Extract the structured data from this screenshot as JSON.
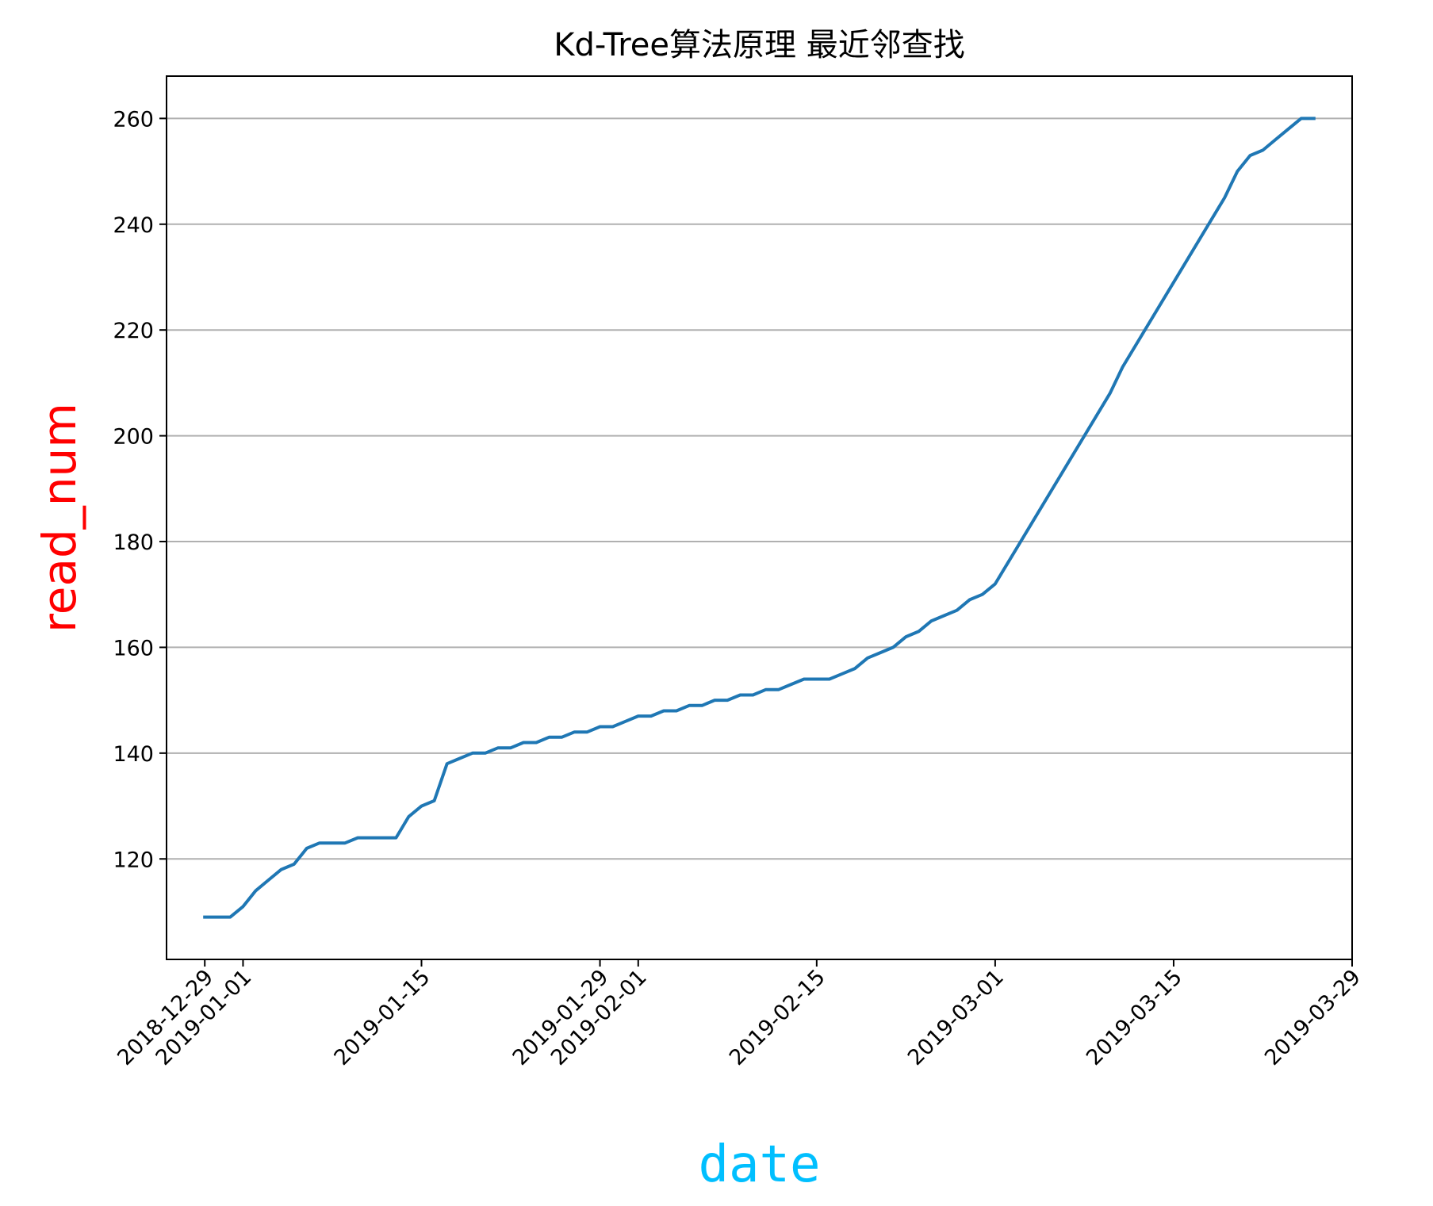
{
  "chart_data": {
    "type": "line",
    "title": "Kd-Tree算法原理 最近邻查找",
    "xlabel": "date",
    "ylabel": "read_num",
    "xlabel_color": "#00bfff",
    "ylabel_color": "#ff0000",
    "line_color": "#1f77b4",
    "grid": "horizontal",
    "xlim": [
      "2018-12-26",
      "2019-03-29"
    ],
    "ylim": [
      101,
      268
    ],
    "x_ticks": [
      "2018-12-29",
      "2019-01-01",
      "2019-01-15",
      "2019-01-29",
      "2019-02-01",
      "2019-02-15",
      "2019-03-01",
      "2019-03-15",
      "2019-03-29"
    ],
    "y_ticks": [
      120,
      140,
      160,
      180,
      200,
      220,
      240,
      260
    ],
    "series": [
      {
        "x": [
          "2018-12-29",
          "2018-12-30",
          "2018-12-31",
          "2019-01-01",
          "2019-01-02",
          "2019-01-03",
          "2019-01-04",
          "2019-01-05",
          "2019-01-06",
          "2019-01-07",
          "2019-01-08",
          "2019-01-09",
          "2019-01-10",
          "2019-01-11",
          "2019-01-12",
          "2019-01-13",
          "2019-01-14",
          "2019-01-15",
          "2019-01-16",
          "2019-01-17",
          "2019-01-18",
          "2019-01-19",
          "2019-01-20",
          "2019-01-21",
          "2019-01-22",
          "2019-01-23",
          "2019-01-24",
          "2019-01-25",
          "2019-01-26",
          "2019-01-27",
          "2019-01-28",
          "2019-01-29",
          "2019-01-30",
          "2019-01-31",
          "2019-02-01",
          "2019-02-02",
          "2019-02-03",
          "2019-02-04",
          "2019-02-05",
          "2019-02-06",
          "2019-02-07",
          "2019-02-08",
          "2019-02-09",
          "2019-02-10",
          "2019-02-11",
          "2019-02-12",
          "2019-02-13",
          "2019-02-14",
          "2019-02-15",
          "2019-02-16",
          "2019-02-17",
          "2019-02-18",
          "2019-02-19",
          "2019-02-20",
          "2019-02-21",
          "2019-02-22",
          "2019-02-23",
          "2019-02-24",
          "2019-02-25",
          "2019-02-26",
          "2019-02-27",
          "2019-02-28",
          "2019-03-01",
          "2019-03-10",
          "2019-03-11",
          "2019-03-19",
          "2019-03-20",
          "2019-03-21",
          "2019-03-22",
          "2019-03-23",
          "2019-03-24",
          "2019-03-25",
          "2019-03-26"
        ],
        "values": [
          109,
          109,
          109,
          111,
          114,
          116,
          118,
          119,
          122,
          123,
          123,
          123,
          124,
          124,
          124,
          124,
          128,
          130,
          131,
          138,
          139,
          140,
          140,
          141,
          141,
          142,
          142,
          143,
          143,
          144,
          144,
          145,
          145,
          146,
          147,
          147,
          148,
          148,
          149,
          149,
          150,
          150,
          151,
          151,
          152,
          152,
          153,
          154,
          154,
          154,
          155,
          156,
          158,
          159,
          160,
          162,
          163,
          165,
          166,
          167,
          169,
          170,
          172,
          208,
          213,
          245,
          250,
          253,
          254,
          256,
          258,
          260,
          260
        ]
      }
    ]
  }
}
